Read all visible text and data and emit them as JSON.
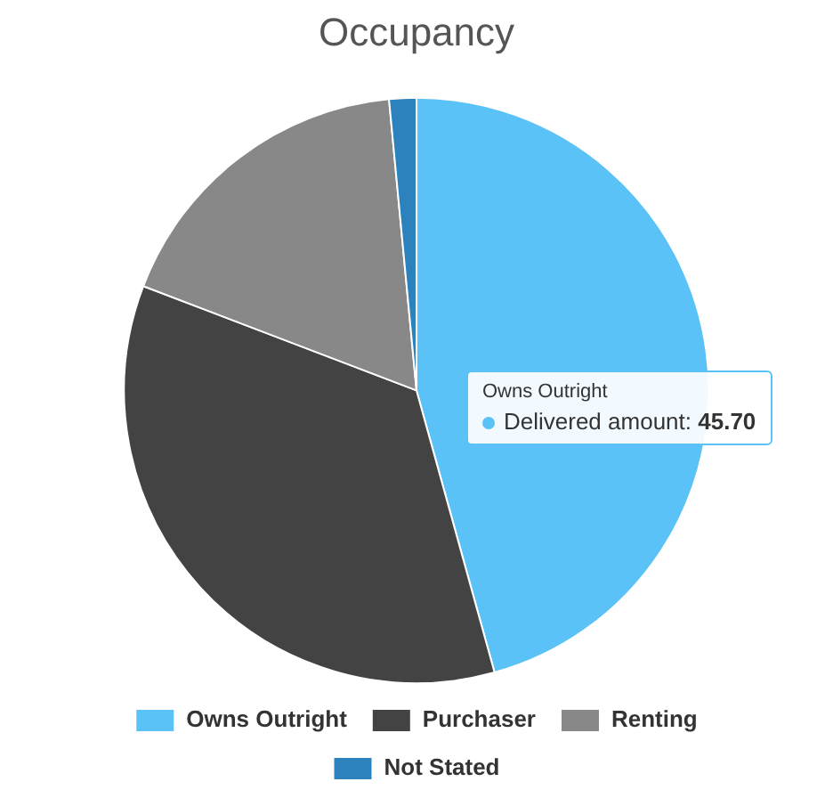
{
  "chart_data": {
    "type": "pie",
    "title": "Occupancy",
    "categories": [
      "Owns Outright",
      "Purchaser",
      "Renting",
      "Not Stated"
    ],
    "values": [
      45.7,
      35.1,
      17.7,
      1.5
    ],
    "colors": [
      "#5bc2f7",
      "#434343",
      "#888888",
      "#2b82bd"
    ],
    "legend": "bottom",
    "annotations": [
      "Owns Outright",
      "Delivered amount: 45.70"
    ]
  }
}
